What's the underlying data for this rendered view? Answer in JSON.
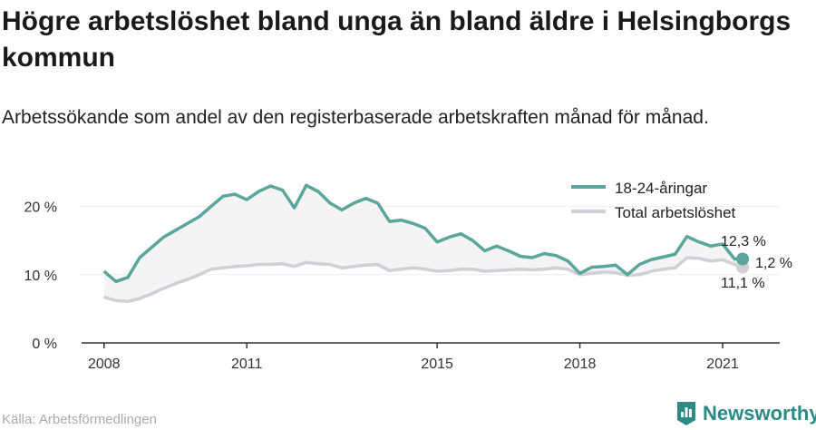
{
  "title": "Högre arbetslöshet bland unga än bland äldre i Helsingborgs kommun",
  "subtitle": "Arbetssökande som andel av den registerbaserade arbetskraften månad för månad.",
  "source": "Källa: Arbetsförmedlingen",
  "brand": "Newsworthy",
  "colors": {
    "youth": "#5aa69d",
    "total": "#cfcfd6",
    "fill": "#f4f4f4",
    "brand": "#2a8a84",
    "axis": "#333333"
  },
  "chart_data": {
    "type": "line",
    "y_ticks": [
      "0 %",
      "10 %",
      "20 %"
    ],
    "y_tick_values": [
      0,
      10,
      20
    ],
    "x_ticks": [
      "2008",
      "2011",
      "2015",
      "2018",
      "2021"
    ],
    "x_tick_values": [
      2008,
      2011,
      2015,
      2018,
      2021
    ],
    "xlim": [
      2007.3,
      2022.2
    ],
    "ylim": [
      0,
      25
    ],
    "legend_position": "top-right",
    "annotations": [
      "12,3 %",
      "1,2 %",
      "11,1 %"
    ],
    "series": [
      {
        "name": "18-24-åringar",
        "x": [
          2008.0,
          2008.25,
          2008.5,
          2008.75,
          2009.0,
          2009.25,
          2009.5,
          2009.75,
          2010.0,
          2010.25,
          2010.5,
          2010.75,
          2011.0,
          2011.25,
          2011.5,
          2011.75,
          2012.0,
          2012.25,
          2012.5,
          2012.75,
          2013.0,
          2013.25,
          2013.5,
          2013.75,
          2014.0,
          2014.25,
          2014.5,
          2014.75,
          2015.0,
          2015.25,
          2015.5,
          2015.75,
          2016.0,
          2016.25,
          2016.5,
          2016.75,
          2017.0,
          2017.25,
          2017.5,
          2017.75,
          2018.0,
          2018.25,
          2018.5,
          2018.75,
          2019.0,
          2019.25,
          2019.5,
          2019.75,
          2020.0,
          2020.25,
          2020.5,
          2020.75,
          2021.0,
          2021.25,
          2021.42
        ],
        "values": [
          10.5,
          9.0,
          9.6,
          12.5,
          14.0,
          15.5,
          16.5,
          17.5,
          18.5,
          20.0,
          21.5,
          21.8,
          21.0,
          22.2,
          23.0,
          22.4,
          19.8,
          23.1,
          22.2,
          20.5,
          19.5,
          20.5,
          21.2,
          20.5,
          17.8,
          18.0,
          17.5,
          16.8,
          14.8,
          15.5,
          16.0,
          15.0,
          13.5,
          14.2,
          13.5,
          12.7,
          12.5,
          13.1,
          12.8,
          12.0,
          10.2,
          11.1,
          11.2,
          11.4,
          10.0,
          11.5,
          12.2,
          12.6,
          13.0,
          15.6,
          14.8,
          14.2,
          14.5,
          12.3,
          12.3
        ]
      },
      {
        "name": "Total arbetslöshet",
        "x": [
          2008.0,
          2008.25,
          2008.5,
          2008.75,
          2009.0,
          2009.25,
          2009.5,
          2009.75,
          2010.0,
          2010.25,
          2010.5,
          2010.75,
          2011.0,
          2011.25,
          2011.5,
          2011.75,
          2012.0,
          2012.25,
          2012.5,
          2012.75,
          2013.0,
          2013.25,
          2013.5,
          2013.75,
          2014.0,
          2014.25,
          2014.5,
          2014.75,
          2015.0,
          2015.25,
          2015.5,
          2015.75,
          2016.0,
          2016.25,
          2016.5,
          2016.75,
          2017.0,
          2017.25,
          2017.5,
          2017.75,
          2018.0,
          2018.25,
          2018.5,
          2018.75,
          2019.0,
          2019.25,
          2019.5,
          2019.75,
          2020.0,
          2020.25,
          2020.5,
          2020.75,
          2021.0,
          2021.25,
          2021.42
        ],
        "values": [
          6.7,
          6.2,
          6.1,
          6.5,
          7.2,
          8.0,
          8.7,
          9.3,
          10.0,
          10.8,
          11.0,
          11.2,
          11.3,
          11.5,
          11.5,
          11.6,
          11.2,
          11.8,
          11.6,
          11.5,
          11.0,
          11.2,
          11.4,
          11.5,
          10.6,
          10.8,
          11.0,
          10.8,
          10.5,
          10.6,
          10.8,
          10.8,
          10.5,
          10.6,
          10.7,
          10.8,
          10.7,
          10.8,
          11.0,
          10.8,
          10.0,
          10.2,
          10.4,
          10.3,
          9.9,
          10.0,
          10.5,
          10.8,
          11.0,
          12.5,
          12.4,
          12.0,
          12.2,
          11.5,
          11.1
        ]
      }
    ]
  }
}
